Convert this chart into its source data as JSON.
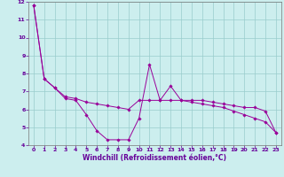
{
  "background_color": "#cceeee",
  "grid_color": "#99cccc",
  "line_color": "#990099",
  "marker_color": "#990099",
  "xlabel": "Windchill (Refroidissement éolien,°C)",
  "xlabel_color": "#660099",
  "tick_label_color": "#660099",
  "ylim": [
    4,
    12
  ],
  "xlim": [
    -0.5,
    23.5
  ],
  "yticks": [
    4,
    5,
    6,
    7,
    8,
    9,
    10,
    11,
    12
  ],
  "xticks": [
    0,
    1,
    2,
    3,
    4,
    5,
    6,
    7,
    8,
    9,
    10,
    11,
    12,
    13,
    14,
    15,
    16,
    17,
    18,
    19,
    20,
    21,
    22,
    23
  ],
  "series1_x": [
    0,
    1,
    2,
    3,
    4,
    5,
    6,
    7,
    8,
    9,
    10,
    11,
    12,
    13,
    14,
    15,
    16,
    17,
    18,
    19,
    20,
    21,
    22,
    23
  ],
  "series1_y": [
    11.8,
    7.7,
    7.2,
    6.6,
    6.5,
    5.7,
    4.8,
    4.3,
    4.3,
    4.3,
    5.5,
    8.5,
    6.5,
    7.3,
    6.5,
    6.5,
    6.5,
    6.4,
    6.3,
    6.2,
    6.1,
    6.1,
    5.9,
    4.7
  ],
  "series2_x": [
    0,
    1,
    2,
    3,
    4,
    5,
    6,
    7,
    8,
    9,
    10,
    11,
    12,
    13,
    14,
    15,
    16,
    17,
    18,
    19,
    20,
    21,
    22,
    23
  ],
  "series2_y": [
    11.8,
    7.7,
    7.2,
    6.7,
    6.6,
    6.4,
    6.3,
    6.2,
    6.1,
    6.0,
    6.5,
    6.5,
    6.5,
    6.5,
    6.5,
    6.4,
    6.3,
    6.2,
    6.1,
    5.9,
    5.7,
    5.5,
    5.3,
    4.7
  ]
}
